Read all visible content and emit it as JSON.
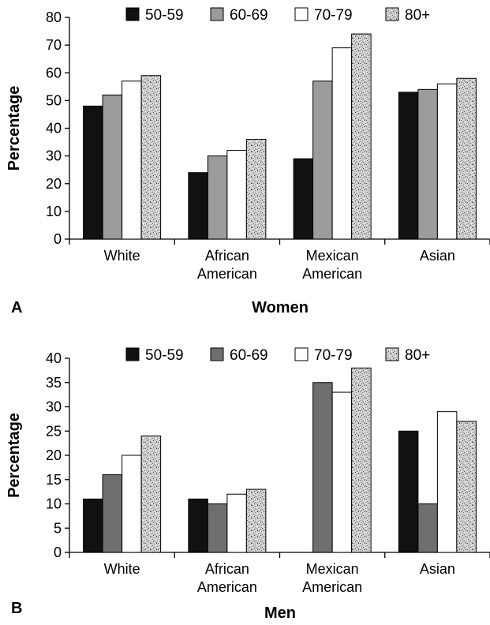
{
  "chart_data": [
    {
      "type": "bar",
      "panel_label": "A",
      "title": "Women",
      "xlabel": "",
      "ylabel": "Percentage",
      "ylim": [
        0,
        80
      ],
      "yticks": [
        0,
        10,
        20,
        30,
        40,
        50,
        60,
        70,
        80
      ],
      "legend_position": "top",
      "categories": [
        "White",
        "African\nAmerican",
        "Mexican\nAmerican",
        "Asian"
      ],
      "series": [
        {
          "name": "50-59",
          "color": "#111111",
          "values": [
            48,
            24,
            29,
            53
          ]
        },
        {
          "name": "60-69",
          "color": "#9b9b9b",
          "values": [
            52,
            30,
            57,
            54
          ]
        },
        {
          "name": "70-79",
          "color": "#ffffff",
          "values": [
            57,
            32,
            69,
            56
          ]
        },
        {
          "name": "80+",
          "color": "#c8c8c8",
          "pattern": "speckle",
          "values": [
            59,
            36,
            74,
            58
          ]
        }
      ]
    },
    {
      "type": "bar",
      "panel_label": "B",
      "title": "Men",
      "xlabel": "",
      "ylabel": "Percentage",
      "ylim": [
        0,
        40
      ],
      "yticks": [
        0,
        5,
        10,
        15,
        20,
        25,
        30,
        35,
        40
      ],
      "legend_position": "top",
      "categories": [
        "White",
        "African\nAmerican",
        "Mexican\nAmerican",
        "Asian"
      ],
      "series": [
        {
          "name": "50-59",
          "color": "#111111",
          "values": [
            11,
            11,
            0,
            25
          ]
        },
        {
          "name": "60-69",
          "color": "#6f6f6f",
          "values": [
            16,
            10,
            35,
            10
          ]
        },
        {
          "name": "70-79",
          "color": "#ffffff",
          "values": [
            20,
            12,
            33,
            29
          ]
        },
        {
          "name": "80+",
          "color": "#c8c8c8",
          "pattern": "speckle",
          "values": [
            24,
            13,
            38,
            27
          ]
        }
      ]
    }
  ]
}
